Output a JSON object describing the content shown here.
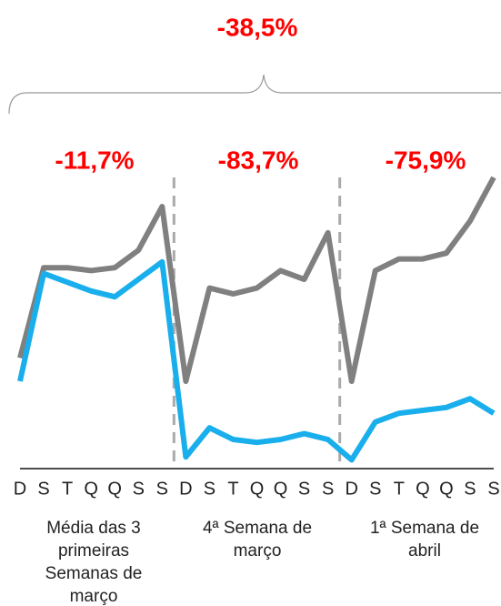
{
  "chart_data": {
    "type": "line",
    "annotations": [
      "-38,5%",
      "-11,7%",
      "-83,7%",
      "-75,9%"
    ],
    "groups": [
      "Média das 3 primeiras Semanas de março",
      "4ª Semana de março",
      "1ª Semana de abril"
    ],
    "categories": [
      "D",
      "S",
      "T",
      "Q",
      "Q",
      "S",
      "S",
      "D",
      "S",
      "T",
      "Q",
      "Q",
      "S",
      "S",
      "D",
      "S",
      "T",
      "Q",
      "Q",
      "S",
      "S"
    ],
    "series": [
      {
        "color": "#808080",
        "values": [
          38,
          69,
          69,
          68,
          69,
          75,
          90,
          30,
          62,
          60,
          62,
          68,
          65,
          81,
          30,
          68,
          72,
          72,
          74,
          85,
          100
        ]
      },
      {
        "color": "#19aeec",
        "values": [
          30,
          67,
          64,
          61,
          59,
          65,
          71,
          4,
          14,
          10,
          9,
          10,
          12,
          10,
          3,
          16,
          19,
          20,
          21,
          24,
          19
        ]
      }
    ],
    "ylim": [
      0,
      100
    ]
  }
}
